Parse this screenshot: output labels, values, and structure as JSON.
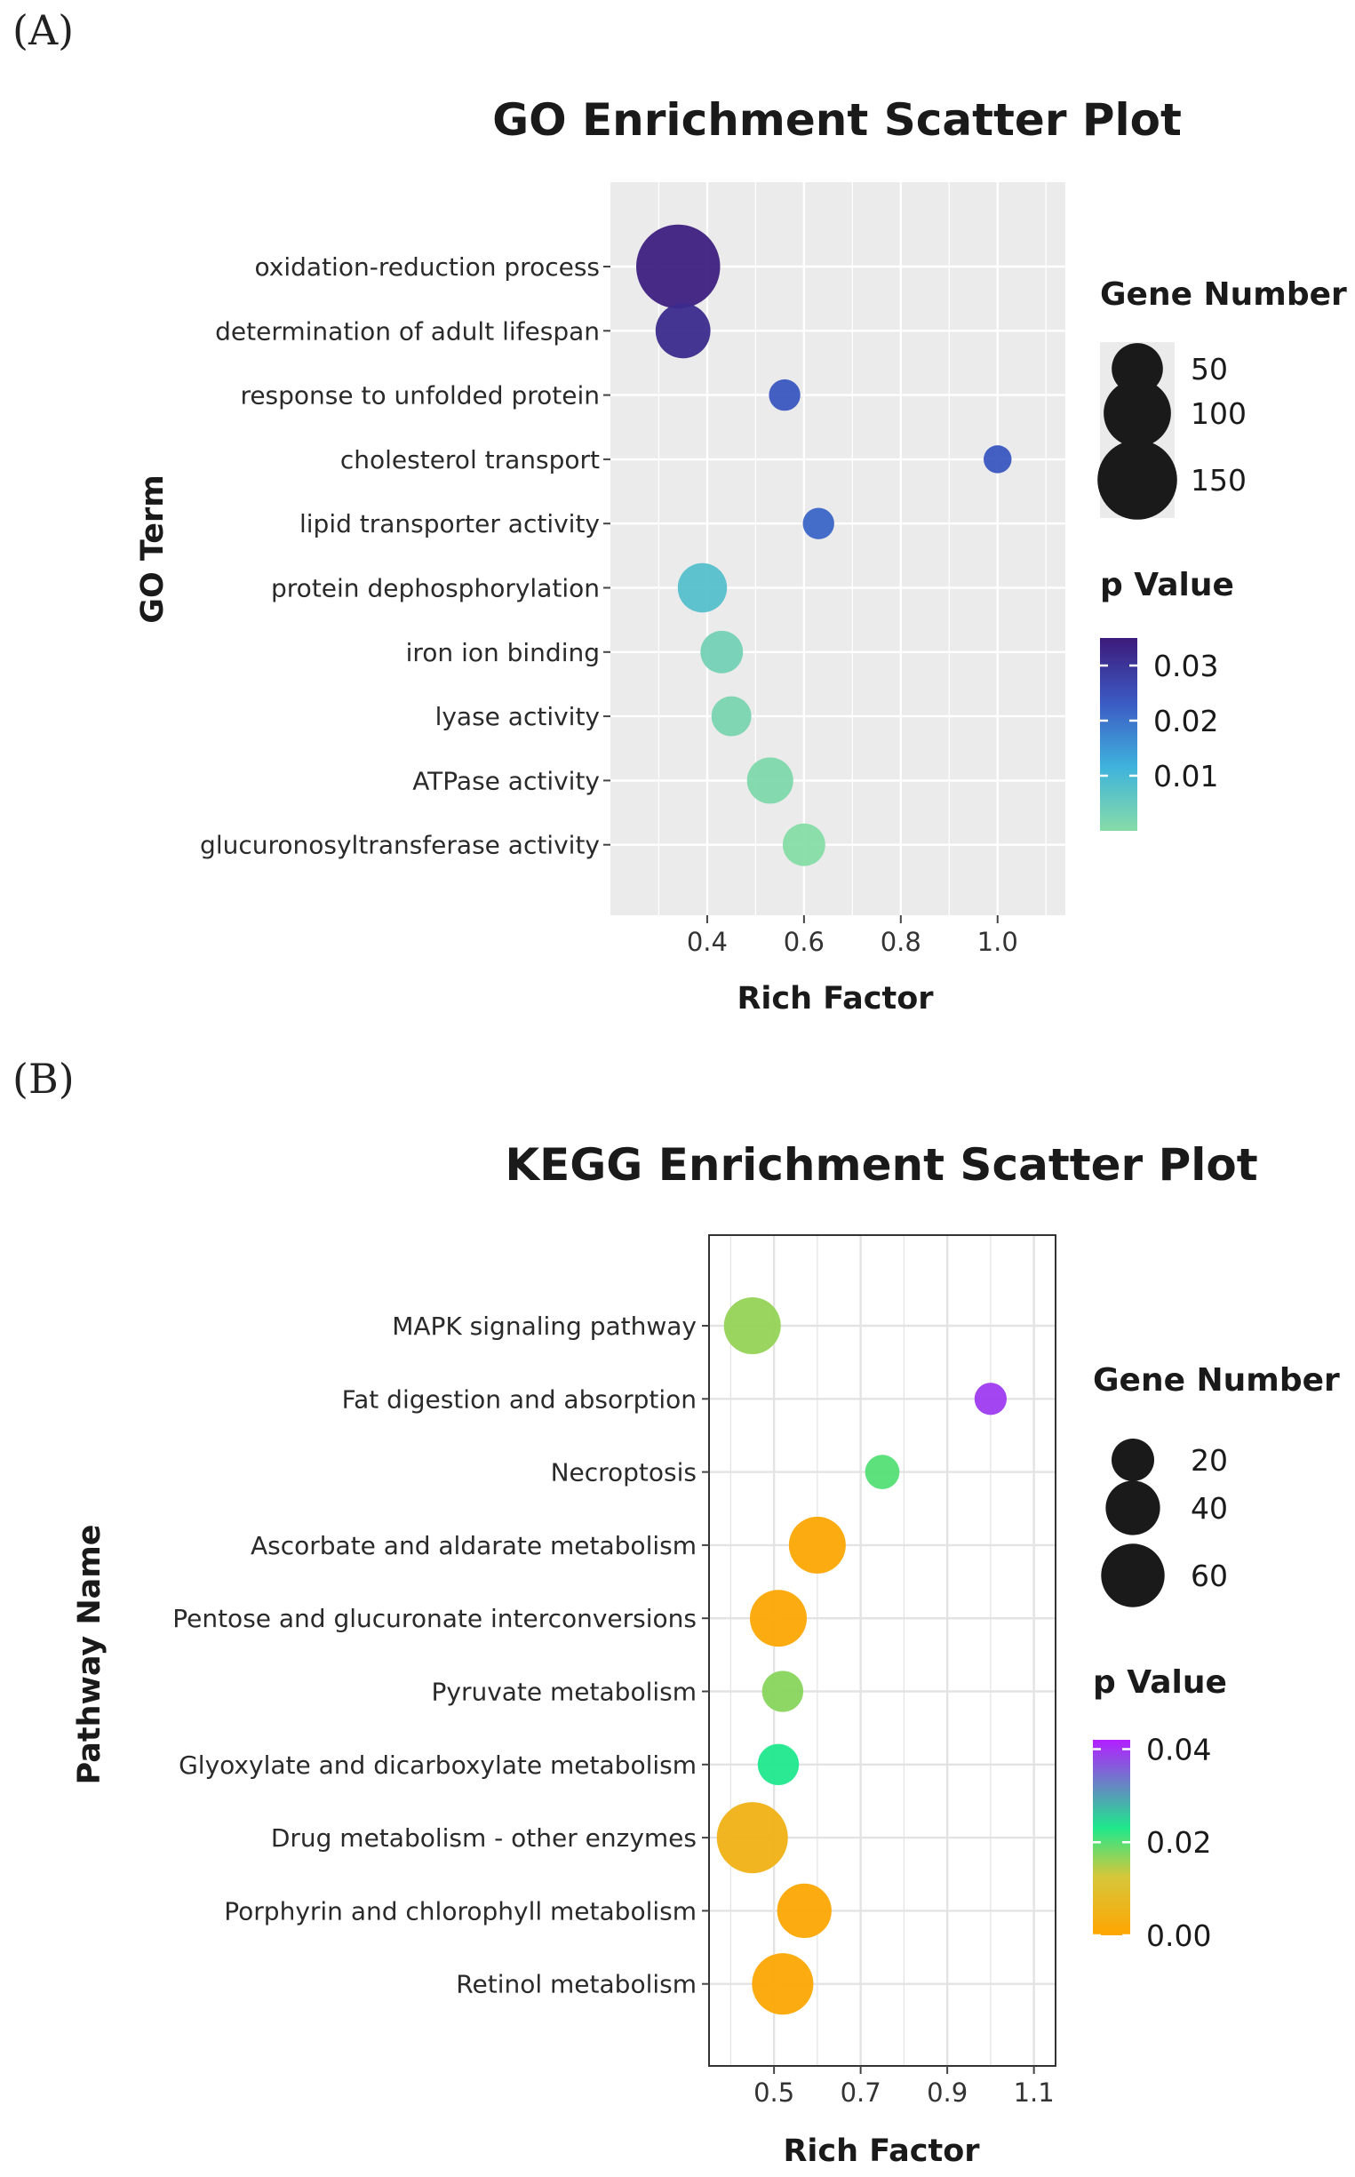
{
  "panels": {
    "a": {
      "label": "(A)"
    },
    "b": {
      "label": "(B)"
    }
  },
  "chart_data": [
    {
      "type": "scatter",
      "title": "GO Enrichment Scatter Plot",
      "xlabel": "Rich Factor",
      "ylabel": "GO Term",
      "xlim": [
        0.2,
        1.14
      ],
      "xticks": [
        0.4,
        0.6,
        0.8,
        1.0
      ],
      "xtick_labels": [
        "0.4",
        "0.6",
        "0.8",
        "1.0"
      ],
      "grid": true,
      "categories": [
        "oxidation-reduction process",
        "determination of adult lifespan",
        "response to unfolded protein",
        "cholesterol transport",
        "lipid transporter activity",
        "protein dephosphorylation",
        "iron ion binding",
        "lyase activity",
        "ATPase activity",
        "glucuronosyltransferase activity"
      ],
      "x": [
        0.34,
        0.35,
        0.56,
        1.0,
        0.63,
        0.39,
        0.43,
        0.45,
        0.53,
        0.6
      ],
      "gene_number": [
        170,
        60,
        12,
        8,
        12,
        45,
        30,
        25,
        38,
        30
      ],
      "p_value": [
        0.034,
        0.032,
        0.024,
        0.024,
        0.022,
        0.008,
        0.003,
        0.002,
        0.001,
        0.0
      ],
      "size_legend": {
        "title": "Gene Number",
        "values": [
          50,
          100,
          150
        ],
        "labels": [
          "50",
          "100",
          "150"
        ]
      },
      "color_legend": {
        "title": "p Value",
        "min": 0.0,
        "max": 0.035,
        "ticks": [
          0.03,
          0.02,
          0.01
        ],
        "labels": [
          "0.03",
          "0.02",
          "0.01"
        ],
        "colors": [
          "#86dca7",
          "#3fb3dc",
          "#3b5bc4",
          "#3d1a7a"
        ]
      },
      "panel_background": "#ebebeb",
      "grid_color": "#ffffff"
    },
    {
      "type": "scatter",
      "title": "KEGG Enrichment Scatter Plot",
      "xlabel": "Rich Factor",
      "ylabel": "Pathway Name",
      "xlim": [
        0.35,
        1.15
      ],
      "xticks": [
        0.5,
        0.7,
        0.9,
        1.1
      ],
      "xtick_labels": [
        "0.5",
        "0.7",
        "0.9",
        "1.1"
      ],
      "grid": true,
      "categories": [
        "MAPK signaling pathway",
        "Fat digestion and absorption",
        "Necroptosis",
        "Ascorbate and aldarate metabolism",
        "Pentose and glucuronate interconversions",
        "Pyruvate metabolism",
        "Glyoxylate and dicarboxylate metabolism",
        "Drug metabolism - other enzymes",
        "Porphyrin and chlorophyll metabolism",
        "Retinol metabolism"
      ],
      "x": [
        0.45,
        1.0,
        0.75,
        0.6,
        0.51,
        0.52,
        0.51,
        0.45,
        0.57,
        0.52
      ],
      "gene_number": [
        45,
        8,
        10,
        45,
        45,
        18,
        18,
        80,
        40,
        55
      ],
      "p_value": [
        0.019,
        0.04,
        0.024,
        0.001,
        0.001,
        0.02,
        0.028,
        0.005,
        0.001,
        0.001
      ],
      "size_legend": {
        "title": "Gene Number",
        "values": [
          20,
          40,
          60
        ],
        "labels": [
          "20",
          "40",
          "60"
        ]
      },
      "color_legend": {
        "title": "p Value",
        "min": 0.0,
        "max": 0.042,
        "ticks": [
          0.04,
          0.02,
          0.0
        ],
        "labels": [
          "0.04",
          "0.02",
          "0.00"
        ],
        "colors": [
          "#ffa500",
          "#d6c73a",
          "#1fe88c",
          "#b31eff"
        ]
      },
      "panel_background": "#ffffff",
      "grid_color": "#e3e3e3"
    }
  ]
}
